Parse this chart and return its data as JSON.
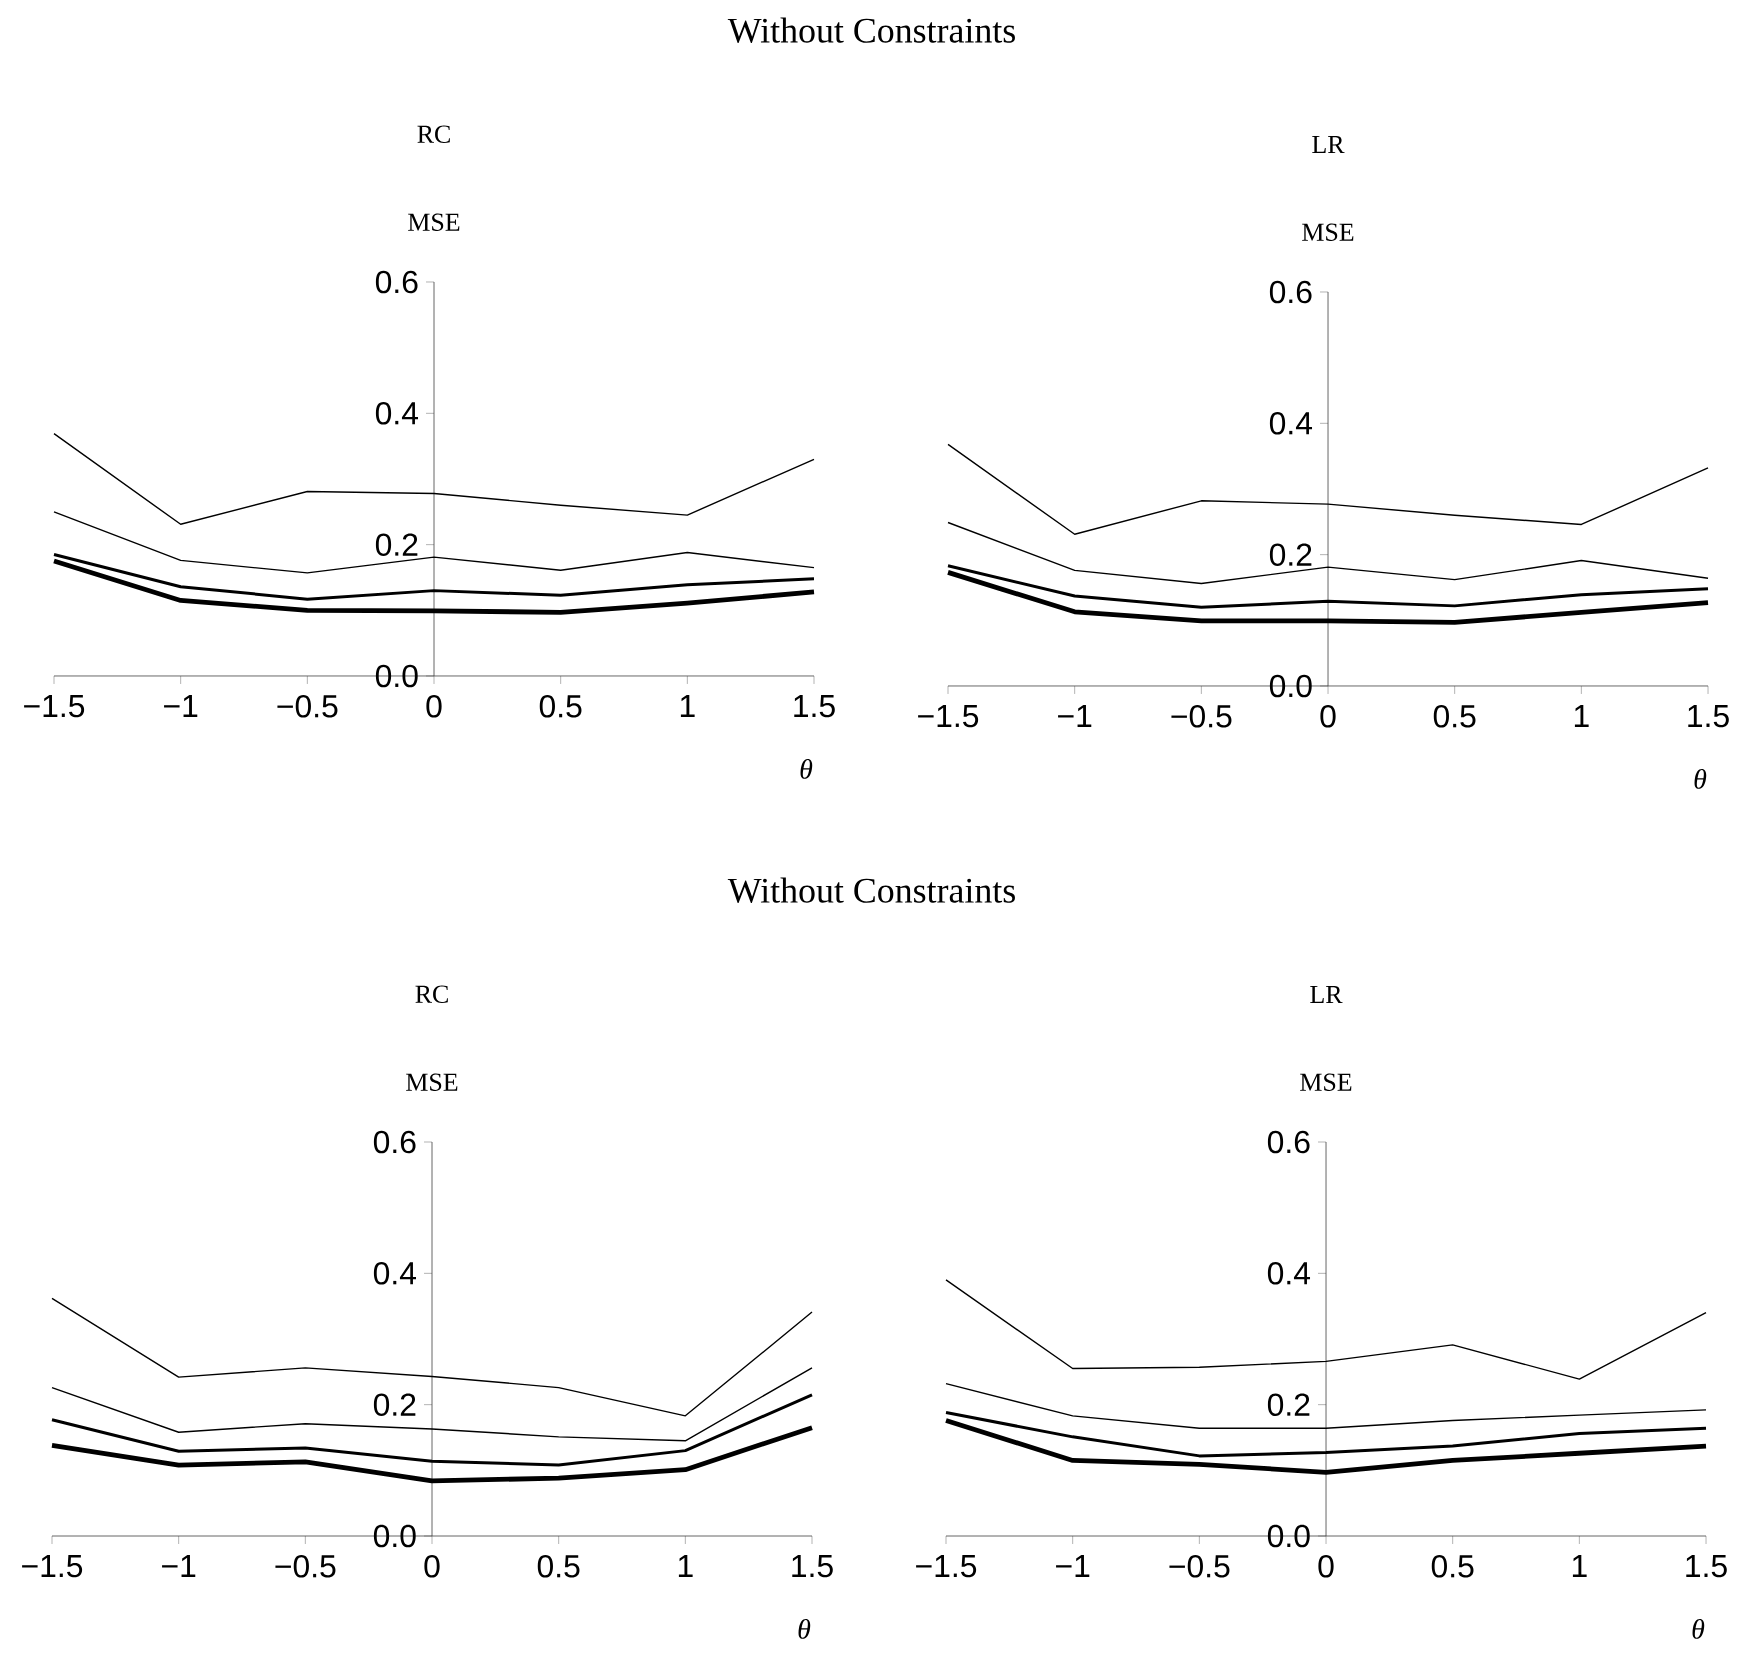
{
  "chart_data": [
    {
      "type": "line",
      "title": "Without Constraints",
      "subtitle": "RC",
      "ylabel": "MSE",
      "xlabel": "θ",
      "x": [
        -1.5,
        -1,
        -0.5,
        0,
        0.5,
        1,
        1.5
      ],
      "xlim": [
        -1.5,
        1.5
      ],
      "ylim": [
        0,
        0.6
      ],
      "xticks": [
        {
          "value": -1.5,
          "label": "−1.5"
        },
        {
          "value": -1,
          "label": "−1"
        },
        {
          "value": -0.5,
          "label": "−0.5"
        },
        0,
        0.5,
        1,
        1.5
      ],
      "yticks": [
        {
          "value": 0,
          "label": "0.0"
        },
        {
          "value": 0.2,
          "label": "0.2"
        },
        {
          "value": 0.4,
          "label": "0.4"
        },
        {
          "value": 0.6,
          "label": "0.6"
        }
      ],
      "line_style": "solid",
      "series": [
        {
          "color": "#000000",
          "values": [
            0.369,
            0.231,
            0.281,
            0.278,
            0.26,
            0.245,
            0.33
          ]
        },
        {
          "color": "#000000",
          "values": [
            0.25,
            0.176,
            0.157,
            0.181,
            0.161,
            0.188,
            0.165
          ]
        },
        {
          "color": "#000000",
          "values": [
            0.185,
            0.136,
            0.117,
            0.13,
            0.123,
            0.139,
            0.148
          ]
        },
        {
          "color": "#000000",
          "values": [
            0.175,
            0.115,
            0.1,
            0.099,
            0.097,
            0.111,
            0.128
          ]
        }
      ]
    },
    {
      "type": "line",
      "subtitle": "LR",
      "ylabel": "MSE",
      "xlabel": "θ",
      "x": [
        -1.5,
        -1,
        -0.5,
        0,
        0.5,
        1,
        1.5
      ],
      "xlim": [
        -1.5,
        1.5
      ],
      "ylim": [
        0,
        0.6
      ],
      "xticks": [
        {
          "value": -1.5,
          "label": "−1.5"
        },
        {
          "value": -1,
          "label": "−1"
        },
        {
          "value": -0.5,
          "label": "−0.5"
        },
        0,
        0.5,
        1,
        1.5
      ],
      "yticks": [
        {
          "value": 0,
          "label": "0.0"
        },
        {
          "value": 0.2,
          "label": "0.2"
        },
        {
          "value": 0.4,
          "label": "0.4"
        },
        {
          "value": 0.6,
          "label": "0.6"
        }
      ],
      "line_style": "solid",
      "series": [
        {
          "color": "#000000",
          "values": [
            0.368,
            0.231,
            0.282,
            0.277,
            0.26,
            0.246,
            0.332
          ]
        },
        {
          "color": "#000000",
          "values": [
            0.249,
            0.176,
            0.156,
            0.181,
            0.162,
            0.191,
            0.164
          ]
        },
        {
          "color": "#000000",
          "values": [
            0.183,
            0.137,
            0.12,
            0.129,
            0.122,
            0.139,
            0.148
          ]
        },
        {
          "color": "#000000",
          "values": [
            0.173,
            0.113,
            0.099,
            0.099,
            0.097,
            0.112,
            0.127
          ]
        }
      ]
    },
    {
      "type": "line",
      "title": "Without Constraints",
      "subtitle": "RC",
      "ylabel": "MSE",
      "xlabel": "θ",
      "x": [
        -1.5,
        -1,
        -0.5,
        0,
        0.5,
        1,
        1.5
      ],
      "xlim": [
        -1.5,
        1.5
      ],
      "ylim": [
        0,
        0.6
      ],
      "xticks": [
        {
          "value": -1.5,
          "label": "−1.5"
        },
        {
          "value": -1,
          "label": "−1"
        },
        {
          "value": -0.5,
          "label": "−0.5"
        },
        0,
        0.5,
        1,
        1.5
      ],
      "yticks": [
        {
          "value": 0,
          "label": "0.0"
        },
        {
          "value": 0.2,
          "label": "0.2"
        },
        {
          "value": 0.4,
          "label": "0.4"
        },
        {
          "value": 0.6,
          "label": "0.6"
        }
      ],
      "line_style": "solid",
      "series": [
        {
          "color": "#000000",
          "values": [
            0.362,
            0.242,
            0.256,
            0.243,
            0.226,
            0.183,
            0.341
          ]
        },
        {
          "color": "#000000",
          "values": [
            0.226,
            0.158,
            0.171,
            0.163,
            0.151,
            0.145,
            0.256
          ]
        },
        {
          "color": "#000000",
          "values": [
            0.177,
            0.129,
            0.134,
            0.114,
            0.108,
            0.13,
            0.215
          ]
        },
        {
          "color": "#000000",
          "values": [
            0.138,
            0.108,
            0.113,
            0.084,
            0.088,
            0.101,
            0.165
          ]
        }
      ]
    },
    {
      "type": "line",
      "subtitle": "LR",
      "ylabel": "MSE",
      "xlabel": "θ",
      "x": [
        -1.5,
        -1,
        -0.5,
        0,
        0.5,
        1,
        1.5
      ],
      "xlim": [
        -1.5,
        1.5
      ],
      "ylim": [
        0,
        0.6
      ],
      "xticks": [
        {
          "value": -1.5,
          "label": "−1.5"
        },
        {
          "value": -1,
          "label": "−1"
        },
        {
          "value": -0.5,
          "label": "−0.5"
        },
        0,
        0.5,
        1,
        1.5
      ],
      "yticks": [
        {
          "value": 0,
          "label": "0.0"
        },
        {
          "value": 0.2,
          "label": "0.2"
        },
        {
          "value": 0.4,
          "label": "0.4"
        },
        {
          "value": 0.6,
          "label": "0.6"
        }
      ],
      "line_style": "solid",
      "series": [
        {
          "color": "#000000",
          "values": [
            0.39,
            0.255,
            0.257,
            0.266,
            0.291,
            0.239,
            0.34
          ]
        },
        {
          "color": "#000000",
          "values": [
            0.232,
            0.183,
            0.164,
            0.164,
            0.176,
            0.184,
            0.192
          ]
        },
        {
          "color": "#000000",
          "values": [
            0.188,
            0.151,
            0.122,
            0.127,
            0.137,
            0.156,
            0.164
          ]
        },
        {
          "color": "#000000",
          "values": [
            0.176,
            0.115,
            0.109,
            0.097,
            0.115,
            0.126,
            0.137
          ]
        }
      ]
    }
  ]
}
